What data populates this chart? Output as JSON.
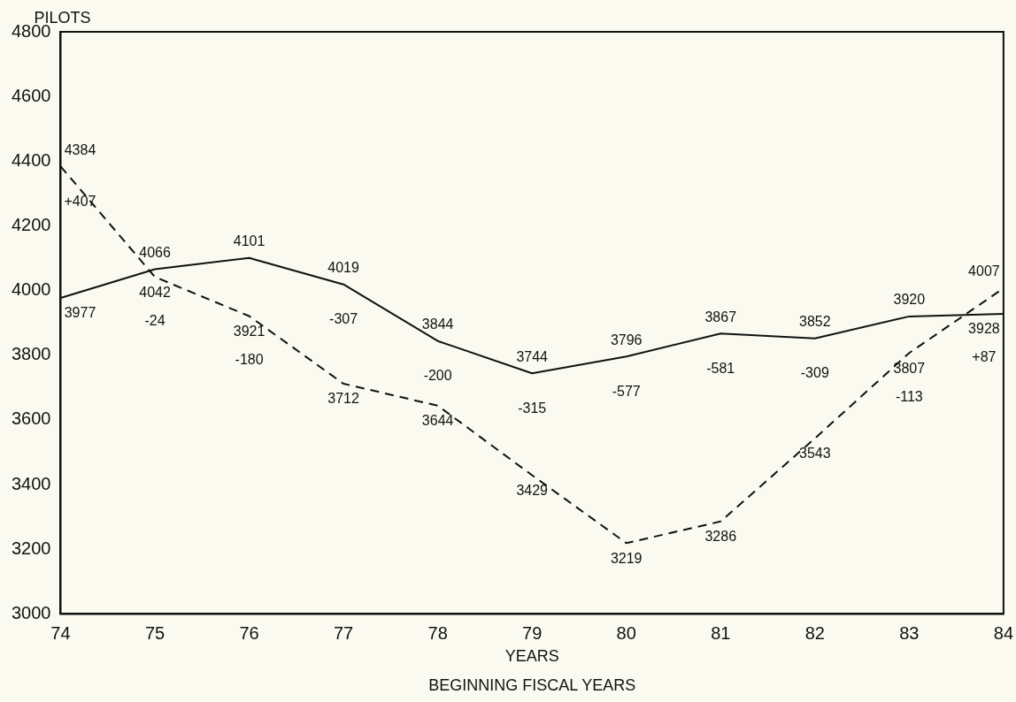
{
  "chart_data": {
    "type": "line",
    "ylabel": "PILOTS",
    "xlabel": "YEARS",
    "categories": [
      "74",
      "75",
      "76",
      "77",
      "78",
      "79",
      "80",
      "81",
      "82",
      "83",
      "84"
    ],
    "series": [
      {
        "color": "#111111",
        "line_style": "solid",
        "values": [
          3977,
          4066,
          4101,
          4019,
          3844,
          3744,
          3796,
          3867,
          3852,
          3920,
          3928
        ]
      },
      {
        "color": "#111111",
        "line_style": "dashed",
        "values": [
          4384,
          4042,
          3921,
          3712,
          3644,
          3429,
          3219,
          3286,
          3543,
          3807,
          4007
        ]
      }
    ],
    "ylim": [
      3000,
      4800
    ],
    "yticks": [
      3000,
      3200,
      3400,
      3600,
      3800,
      4000,
      4200,
      4400,
      4600,
      4800
    ],
    "grid": false,
    "legend": false,
    "marker": "none",
    "data_labels": true,
    "annotations": [
      "+407",
      "-24",
      "-180",
      "-307",
      "-200",
      "-315",
      "-577",
      "-581",
      "-309",
      "-113",
      "+87",
      "BEGINNING FISCAL YEARS"
    ]
  }
}
